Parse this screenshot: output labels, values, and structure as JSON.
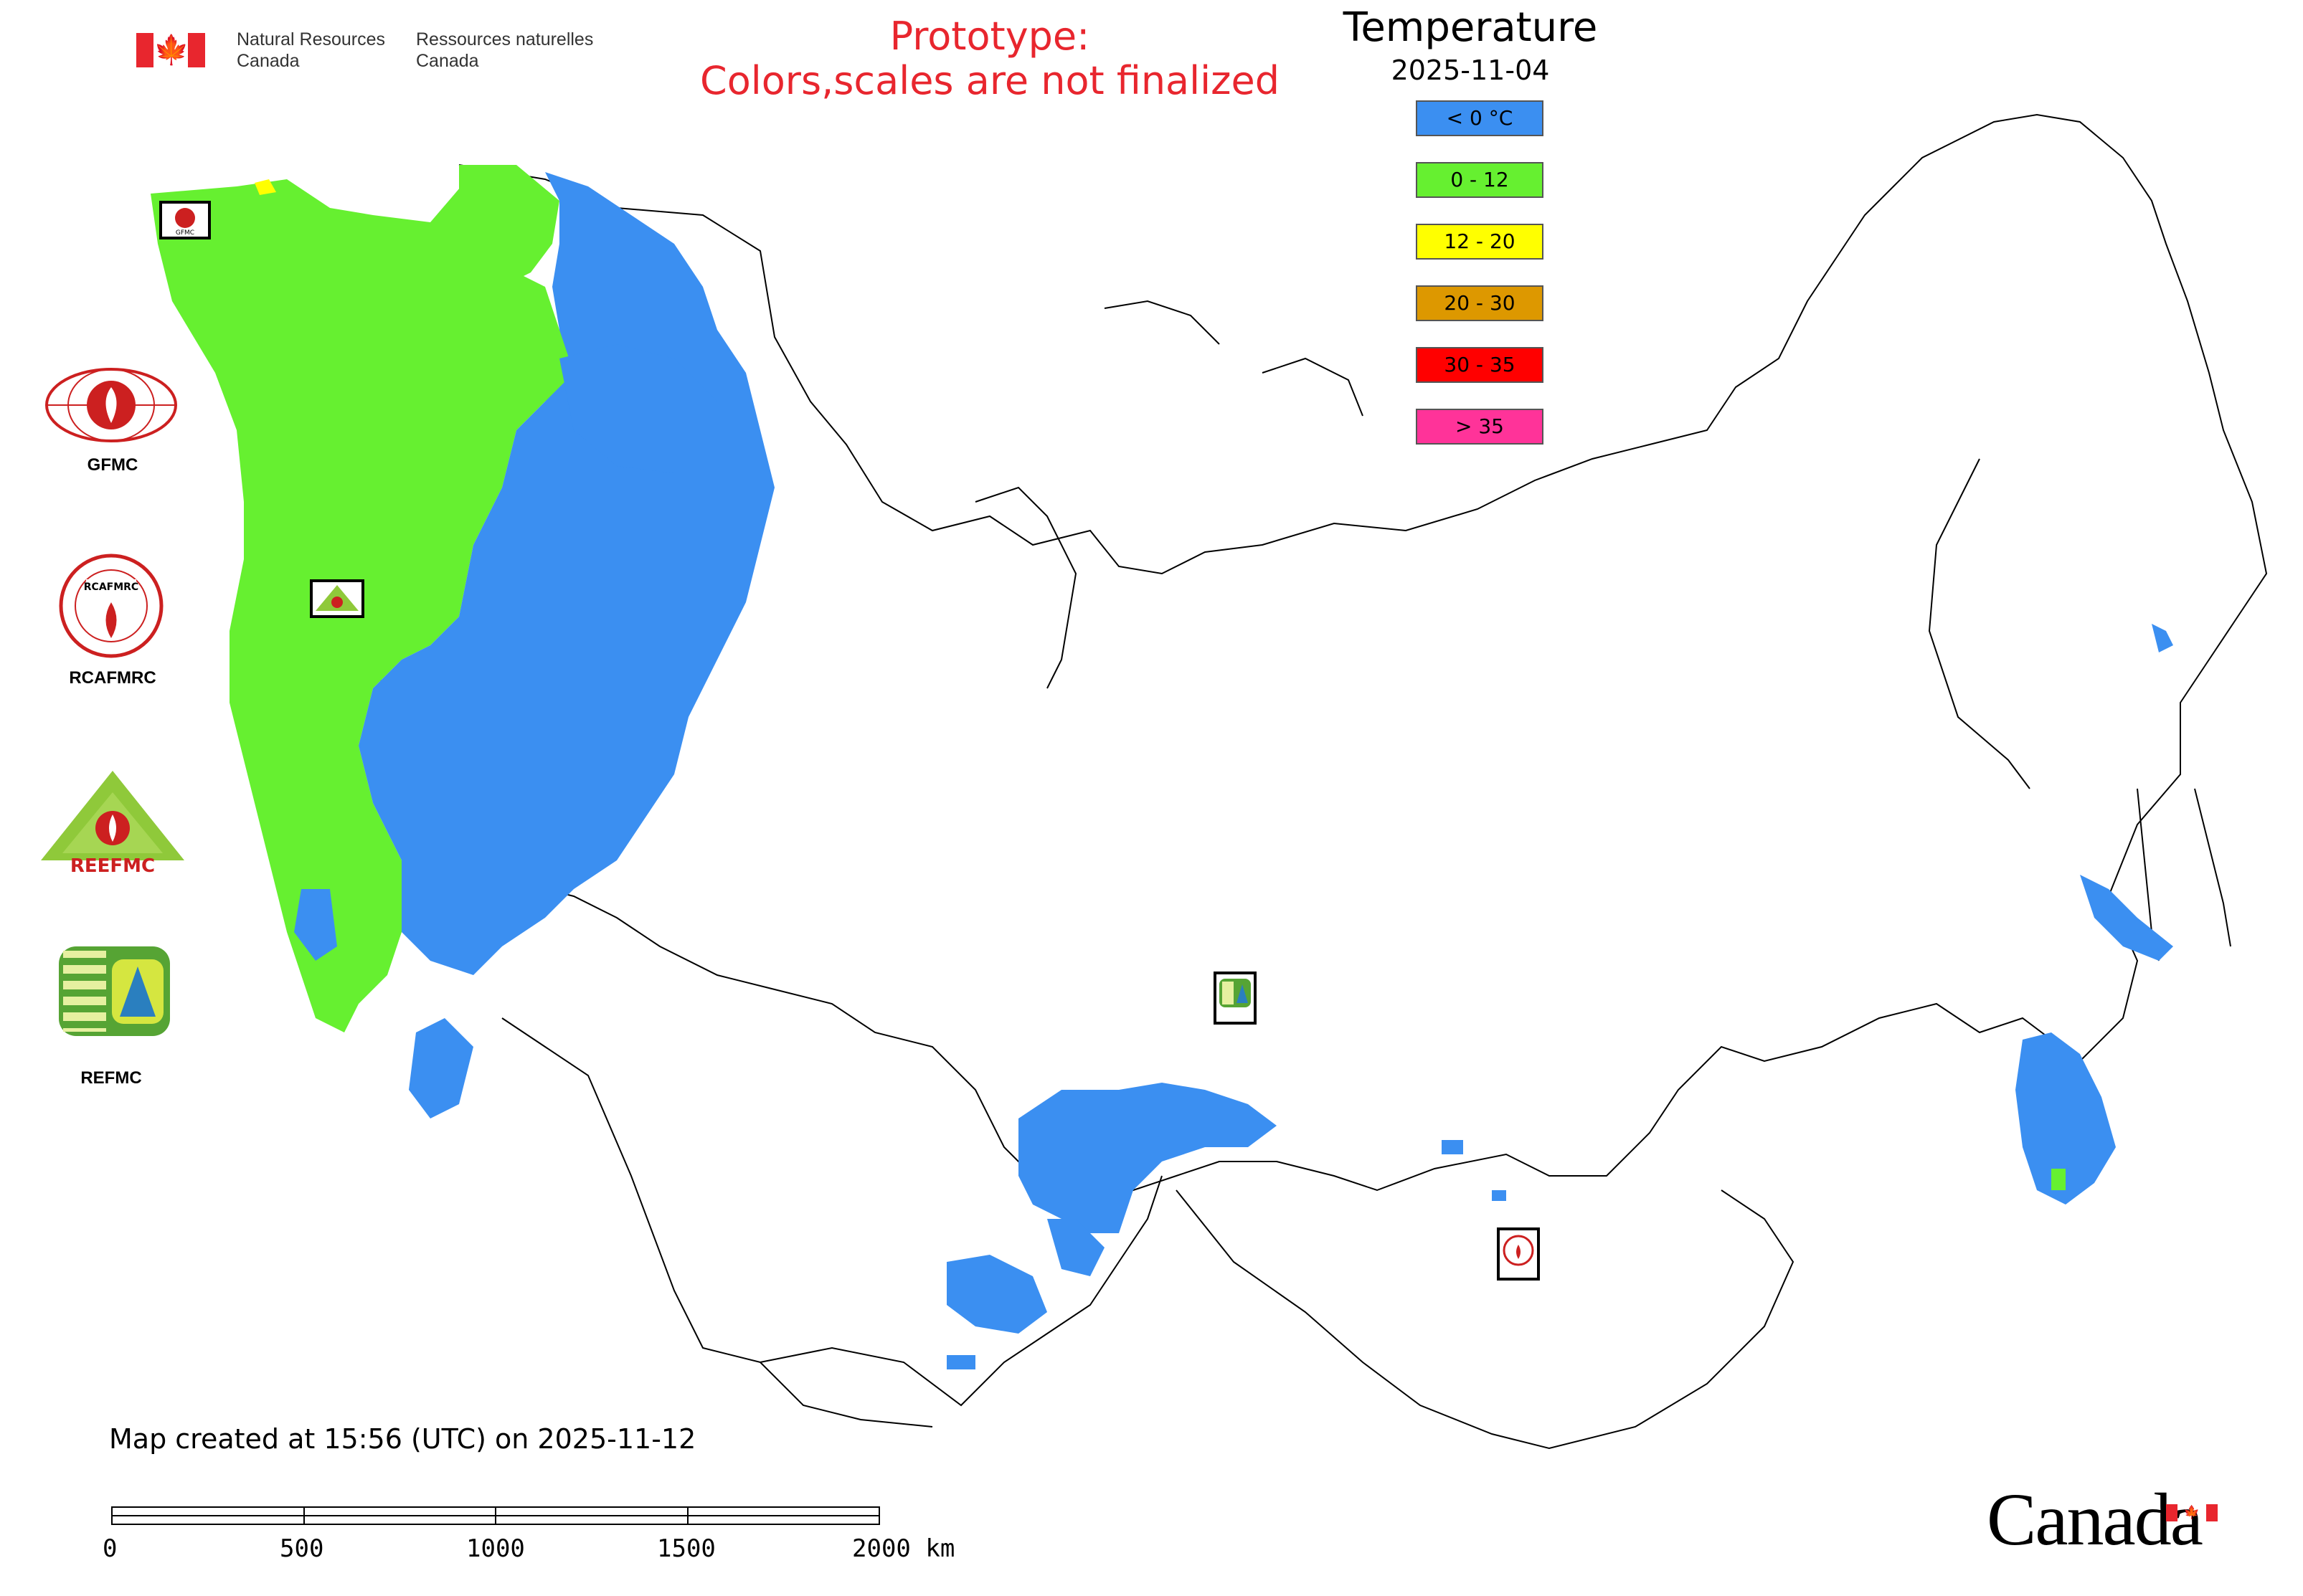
{
  "header": {
    "department_en_line1": "Natural Resources",
    "department_en_line2": "Canada",
    "department_fr_line1": "Ressources naturelles",
    "department_fr_line2": "Canada",
    "prototype_line1": "Prototype:",
    "prototype_line2": "Colors,scales are not finalized"
  },
  "legend": {
    "title": "Temperature",
    "date": "2025-11-04",
    "items": [
      {
        "label": "< 0 °C",
        "color": "#3b8ff1"
      },
      {
        "label": "0 - 12",
        "color": "#66f030"
      },
      {
        "label": "12 - 20",
        "color": "#ffff00"
      },
      {
        "label": "20 - 30",
        "color": "#dd9800"
      },
      {
        "label": "30 - 35",
        "color": "#ff0000"
      },
      {
        "label": "> 35",
        "color": "#ff3399"
      }
    ]
  },
  "logos": {
    "gfmc": "GFMC",
    "rcafmrc": "RCAFMRC",
    "reefmc": "REEFMC",
    "refmc": "REFMC"
  },
  "footer": {
    "created_note": "Map created at 15:56 (UTC) on 2025-11-12",
    "wordmark": "Canada"
  },
  "scale_bar": {
    "ticks": [
      "0",
      "500",
      "1000",
      "1500",
      "2000 km"
    ]
  },
  "colors": {
    "cold": "#3b8ff1",
    "mild": "#66f030",
    "warm": "#ffff00",
    "brand_red": "#e8262e"
  }
}
